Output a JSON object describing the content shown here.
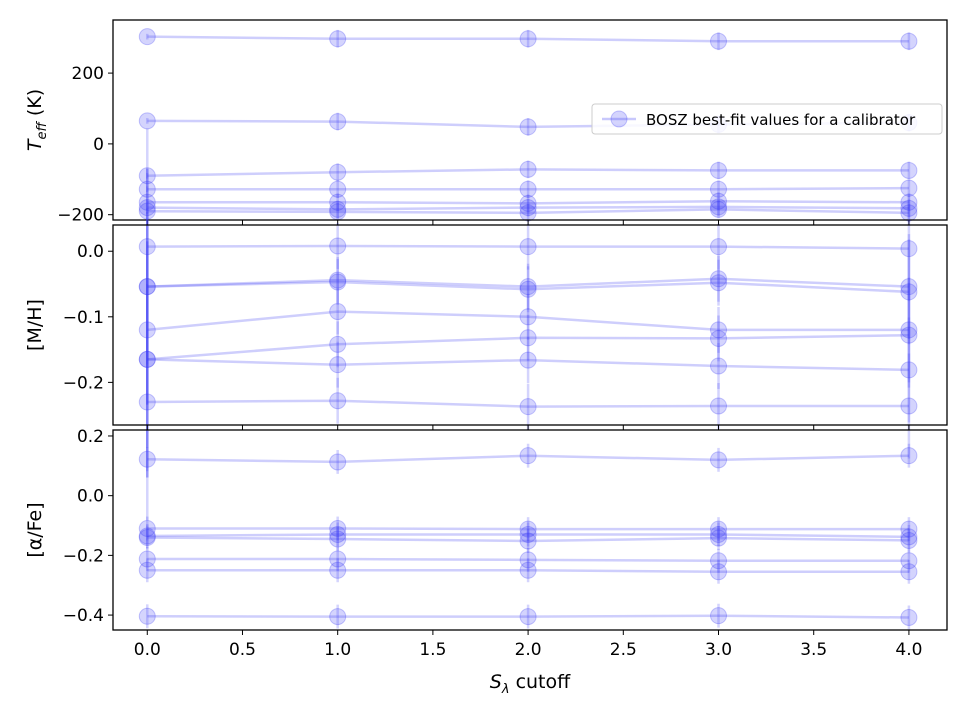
{
  "colors": {
    "series": "#3b3bf5",
    "axis": "#000000",
    "legend_border": "#cccccc"
  },
  "chart_data": [
    {
      "type": "line",
      "panel": "teff",
      "ylabel": "T",
      "ylabel_sub": "eff",
      "ylabel_suffix": " (K)",
      "ylim": [
        -215,
        350
      ],
      "yticks": [
        -200,
        0,
        200
      ],
      "ytick_labels": [
        "−200",
        "0",
        "200"
      ],
      "legend": {
        "label": "BOSZ best-fit values for a calibrator",
        "position": "center-right"
      },
      "x": [
        0,
        1,
        2,
        3,
        4
      ],
      "series": [
        {
          "values": [
            303,
            297,
            297,
            290,
            290
          ]
        },
        {
          "values": [
            65,
            63,
            48,
            55,
            60
          ]
        },
        {
          "values": [
            -90,
            -80,
            -72,
            -75,
            -75
          ]
        },
        {
          "values": [
            -128,
            -128,
            -128,
            -128,
            -125
          ]
        },
        {
          "values": [
            -165,
            -165,
            -168,
            -162,
            -165
          ]
        },
        {
          "values": [
            -180,
            -185,
            -180,
            -178,
            -182
          ]
        },
        {
          "values": [
            -190,
            -192,
            -195,
            -185,
            -195
          ]
        }
      ],
      "errors": [
        8,
        25,
        25,
        25,
        25
      ]
    },
    {
      "type": "line",
      "panel": "mh",
      "ylabel": "[M/H]",
      "ylim": [
        -0.265,
        0.04
      ],
      "yticks": [
        -0.2,
        -0.1,
        0.0
      ],
      "ytick_labels": [
        "−0.2",
        "−0.1",
        "0.0"
      ],
      "x": [
        0,
        1,
        2,
        3,
        4
      ],
      "series": [
        {
          "values": [
            0.007,
            0.008,
            0.007,
            0.007,
            0.004
          ]
        },
        {
          "values": [
            -0.054,
            -0.044,
            -0.054,
            -0.042,
            -0.054
          ]
        },
        {
          "values": [
            -0.054,
            -0.047,
            -0.058,
            -0.048,
            -0.062
          ]
        },
        {
          "values": [
            -0.12,
            -0.092,
            -0.1,
            -0.12,
            -0.12
          ]
        },
        {
          "values": [
            -0.165,
            -0.142,
            -0.132,
            -0.133,
            -0.128
          ]
        },
        {
          "values": [
            -0.165,
            -0.173,
            -0.166,
            -0.175,
            -0.181
          ]
        },
        {
          "values": [
            -0.23,
            -0.228,
            -0.237,
            -0.236,
            -0.236
          ]
        }
      ],
      "errors": [
        0.18,
        0.035,
        0.035,
        0.035,
        0.08
      ]
    },
    {
      "type": "line",
      "panel": "alpha",
      "ylabel": "[α/Fe]",
      "xlabel": "S",
      "xlabel_sub": "λ",
      "xlabel_suffix": " cutoff",
      "ylim": [
        -0.45,
        0.22
      ],
      "yticks": [
        -0.4,
        -0.2,
        0.0,
        0.2
      ],
      "ytick_labels": [
        "−0.4",
        "−0.2",
        "0.0",
        "0.2"
      ],
      "xticks": [
        0,
        0.5,
        1,
        1.5,
        2,
        2.5,
        3,
        3.5,
        4
      ],
      "xtick_labels": [
        "0.0",
        "0.5",
        "1.0",
        "1.5",
        "2.0",
        "2.5",
        "3.0",
        "3.5",
        "4.0"
      ],
      "xlim": [
        -0.18,
        4.2
      ],
      "x": [
        0,
        1,
        2,
        3,
        4
      ],
      "series": [
        {
          "values": [
            0.122,
            0.113,
            0.134,
            0.12,
            0.134
          ]
        },
        {
          "values": [
            -0.11,
            -0.11,
            -0.112,
            -0.112,
            -0.112
          ]
        },
        {
          "values": [
            -0.135,
            -0.13,
            -0.13,
            -0.13,
            -0.138
          ]
        },
        {
          "values": [
            -0.14,
            -0.145,
            -0.152,
            -0.142,
            -0.15
          ]
        },
        {
          "values": [
            -0.212,
            -0.212,
            -0.215,
            -0.218,
            -0.218
          ]
        },
        {
          "values": [
            -0.25,
            -0.25,
            -0.25,
            -0.255,
            -0.255
          ]
        },
        {
          "values": [
            -0.404,
            -0.405,
            -0.405,
            -0.402,
            -0.408
          ]
        }
      ],
      "errors": [
        0.04,
        0.04,
        0.04,
        0.04,
        0.04
      ]
    }
  ]
}
